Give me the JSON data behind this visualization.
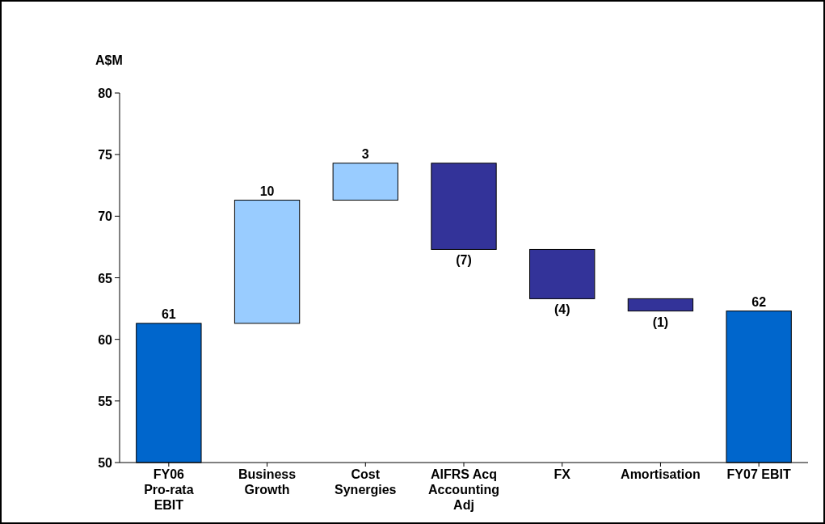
{
  "chart_data": {
    "type": "bar",
    "ylabel": "A$M",
    "categories": [
      "FY06 Pro-rata EBIT",
      "Business Growth",
      "Cost Synergies",
      "AIFRS Acq Accounting Adj",
      "FX",
      "Amortisation",
      "FY07 EBIT"
    ],
    "values": [
      61.3,
      10,
      3,
      -7,
      -4,
      -1,
      62.3
    ],
    "base": [
      0,
      61.3,
      71.3,
      74.3,
      67.3,
      63.3,
      0
    ],
    "colors": [
      "#0066cc",
      "#99ccff",
      "#99ccff",
      "#333399",
      "#333399",
      "#333399",
      "#0066cc"
    ],
    "value_labels": [
      "61",
      "10",
      "3",
      "(7)",
      "(4)",
      "(1)",
      "62"
    ],
    "ylim": [
      50,
      80
    ],
    "yticks": [
      50,
      55,
      60,
      65,
      70,
      75,
      80
    ],
    "grid": false
  }
}
